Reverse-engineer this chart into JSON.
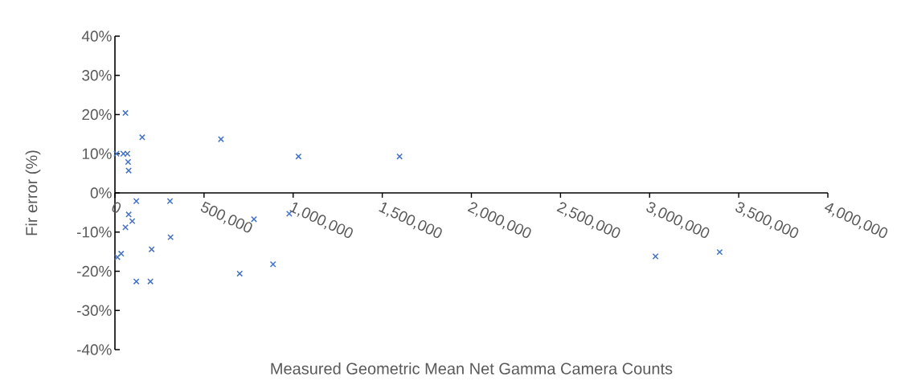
{
  "chart_data": {
    "type": "scatter",
    "xlabel": "Measured Geometric Mean Net Gamma Camera Counts",
    "ylabel": "Fir error (%)",
    "x": [
      59000,
      153000,
      9000,
      47000,
      70000,
      74000,
      77000,
      120000,
      309000,
      77000,
      97000,
      59000,
      312000,
      206000,
      35000,
      14000,
      120000,
      199000,
      595000,
      1030000,
      1597000,
      780000,
      978000,
      887000,
      700000,
      3033000,
      3393000
    ],
    "values": [
      20.4,
      14.2,
      10.0,
      10.0,
      10.0,
      7.9,
      5.7,
      -2.1,
      -2.1,
      -5.5,
      -7.2,
      -8.8,
      -11.3,
      -14.4,
      -15.5,
      -16.4,
      -22.6,
      -22.6,
      13.7,
      9.3,
      9.3,
      -6.7,
      -5.3,
      -18.2,
      -20.6,
      -16.2,
      -15.1
    ],
    "color": "#4472c4",
    "marker": "cross",
    "grid": false,
    "xlim": [
      0,
      4000000
    ],
    "ylim": [
      -40,
      40
    ],
    "xticks": [
      {
        "value": 0,
        "label": "0"
      },
      {
        "value": 500000,
        "label": "500,000"
      },
      {
        "value": 1000000,
        "label": "1,000,000"
      },
      {
        "value": 1500000,
        "label": "1,500,000"
      },
      {
        "value": 2000000,
        "label": "2,000,000"
      },
      {
        "value": 2500000,
        "label": "2,500,000"
      },
      {
        "value": 3000000,
        "label": "3,000,000"
      },
      {
        "value": 3500000,
        "label": "3,500,000"
      },
      {
        "value": 4000000,
        "label": "4,000,000"
      }
    ],
    "yticks": [
      {
        "value": -40,
        "label": "-40%"
      },
      {
        "value": -30,
        "label": "-30%"
      },
      {
        "value": -20,
        "label": "-20%"
      },
      {
        "value": -10,
        "label": "-10%"
      },
      {
        "value": 0,
        "label": "0%"
      },
      {
        "value": 10,
        "label": "10%"
      },
      {
        "value": 20,
        "label": "20%"
      },
      {
        "value": 30,
        "label": "30%"
      },
      {
        "value": 40,
        "label": "40%"
      }
    ]
  }
}
